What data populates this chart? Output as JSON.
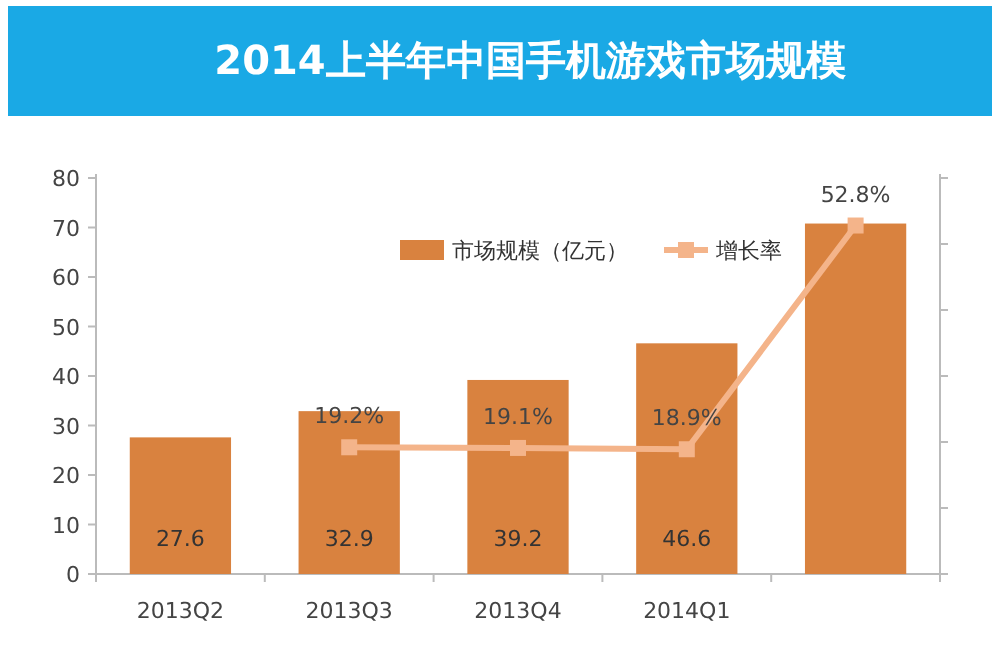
{
  "chart_data": {
    "type": "bar",
    "title": "2014上半年中国手机游戏市场规模",
    "categories": [
      "2013Q2",
      "2013Q3",
      "2013Q4",
      "2014Q1",
      null
    ],
    "series": [
      {
        "name": "市场规模（亿元）",
        "color": "#d9823f",
        "values": [
          27.6,
          32.9,
          39.2,
          46.6,
          70.8
        ],
        "value_labels": [
          "27.6",
          "32.9",
          "39.2",
          "46.6",
          null
        ]
      },
      {
        "name": "增长率",
        "type": "line",
        "axis": "y2",
        "color": "#f4b48a",
        "marker": "square",
        "values": [
          null,
          19.2,
          19.1,
          18.9,
          52.8
        ],
        "value_labels": [
          null,
          "19.2%",
          "19.1%",
          "18.9%",
          "52.8%"
        ]
      }
    ],
    "ylim": [
      0,
      80
    ],
    "yticks": [
      0,
      10,
      20,
      30,
      40,
      50,
      60,
      70,
      80
    ],
    "y2lim": [
      0,
      60
    ],
    "y2ticks": [
      {
        "value": 0,
        "label": null
      },
      {
        "value": 10,
        "label": null
      },
      {
        "value": 20,
        "label": null
      },
      {
        "value": 30,
        "label": null
      },
      {
        "value": 40,
        "label": null
      },
      {
        "value": 50,
        "label": null
      },
      {
        "value": 60,
        "label": null
      }
    ],
    "legend": "top",
    "grid": false
  }
}
